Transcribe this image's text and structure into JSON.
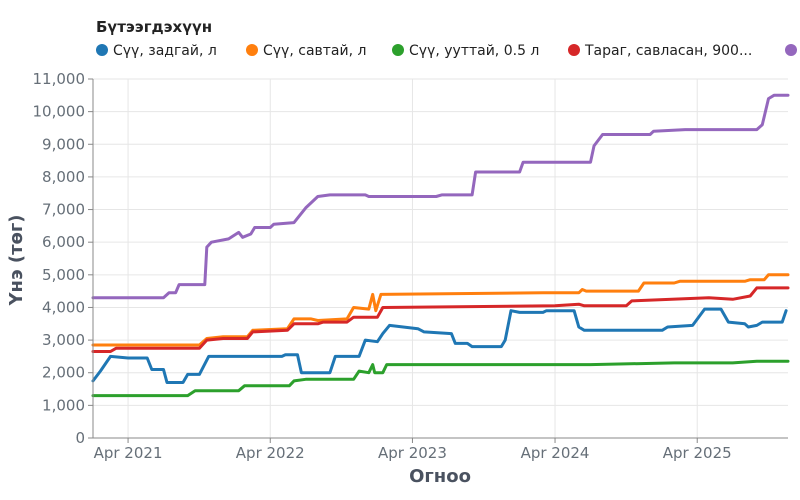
{
  "chart_data": {
    "type": "line",
    "legend": {
      "title": "Бүтээгдэхүүн",
      "placement": "top-left"
    },
    "xlabel": "Огноо",
    "ylabel": "Үнэ (төг)",
    "ylim": [
      0,
      11000
    ],
    "y_ticks": [
      "0",
      "1,000",
      "2,000",
      "3,000",
      "4,000",
      "5,000",
      "6,000",
      "7,000",
      "8,000",
      "9,000",
      "10,000",
      "11,000"
    ],
    "x_ticks": [
      "Apr 2021",
      "Apr 2022",
      "Apr 2023",
      "Apr 2024",
      "Apr 2025"
    ],
    "x_tick_dates": [
      "2021-04-01",
      "2022-04-01",
      "2023-04-01",
      "2024-04-01",
      "2025-04-01"
    ],
    "xlim": [
      "2021-01-01",
      "2025-11-20"
    ],
    "grid": true,
    "series": [
      {
        "name": "Сүү, задгай, л",
        "color": "#1f77b4",
        "points": [
          [
            "2021-01-01",
            1750
          ],
          [
            "2021-01-20",
            2050
          ],
          [
            "2021-02-15",
            2500
          ],
          [
            "2021-04-01",
            2450
          ],
          [
            "2021-05-20",
            2450
          ],
          [
            "2021-06-01",
            2100
          ],
          [
            "2021-07-01",
            2100
          ],
          [
            "2021-07-10",
            1700
          ],
          [
            "2021-08-20",
            1700
          ],
          [
            "2021-09-01",
            1950
          ],
          [
            "2021-10-01",
            1950
          ],
          [
            "2021-10-25",
            2500
          ],
          [
            "2022-05-01",
            2500
          ],
          [
            "2022-05-10",
            2550
          ],
          [
            "2022-06-10",
            2550
          ],
          [
            "2022-06-20",
            2000
          ],
          [
            "2022-09-01",
            2000
          ],
          [
            "2022-09-15",
            2500
          ],
          [
            "2022-11-15",
            2500
          ],
          [
            "2022-12-01",
            3000
          ],
          [
            "2023-01-01",
            2950
          ],
          [
            "2023-01-15",
            3200
          ],
          [
            "2023-02-01",
            3450
          ],
          [
            "2023-04-15",
            3350
          ],
          [
            "2023-05-01",
            3250
          ],
          [
            "2023-07-10",
            3200
          ],
          [
            "2023-07-20",
            2900
          ],
          [
            "2023-08-20",
            2900
          ],
          [
            "2023-09-01",
            2800
          ],
          [
            "2023-11-15",
            2800
          ],
          [
            "2023-11-25",
            3000
          ],
          [
            "2023-12-10",
            3900
          ],
          [
            "2024-01-01",
            3850
          ],
          [
            "2024-03-01",
            3850
          ],
          [
            "2024-03-10",
            3900
          ],
          [
            "2024-05-20",
            3900
          ],
          [
            "2024-06-01",
            3400
          ],
          [
            "2024-06-15",
            3300
          ],
          [
            "2025-01-01",
            3300
          ],
          [
            "2025-01-15",
            3400
          ],
          [
            "2025-03-20",
            3450
          ],
          [
            "2025-04-20",
            3950
          ],
          [
            "2025-06-01",
            3950
          ],
          [
            "2025-06-20",
            3550
          ],
          [
            "2025-08-01",
            3500
          ],
          [
            "2025-08-10",
            3400
          ],
          [
            "2025-09-01",
            3450
          ],
          [
            "2025-09-15",
            3550
          ],
          [
            "2025-11-05",
            3550
          ],
          [
            "2025-11-15",
            3900
          ]
        ]
      },
      {
        "name": "Сүү, савтай, л",
        "color": "#ff7f0e",
        "points": [
          [
            "2021-01-01",
            2850
          ],
          [
            "2021-10-01",
            2850
          ],
          [
            "2021-10-20",
            3050
          ],
          [
            "2021-12-01",
            3100
          ],
          [
            "2022-02-01",
            3100
          ],
          [
            "2022-02-15",
            3300
          ],
          [
            "2022-05-15",
            3350
          ],
          [
            "2022-06-01",
            3650
          ],
          [
            "2022-07-15",
            3650
          ],
          [
            "2022-08-01",
            3600
          ],
          [
            "2022-10-15",
            3650
          ],
          [
            "2022-11-01",
            4000
          ],
          [
            "2022-12-10",
            3950
          ],
          [
            "2022-12-20",
            4400
          ],
          [
            "2022-12-28",
            3900
          ],
          [
            "2023-01-10",
            4400
          ],
          [
            "2024-03-01",
            4450
          ],
          [
            "2024-06-01",
            4450
          ],
          [
            "2024-06-10",
            4550
          ],
          [
            "2024-06-20",
            4500
          ],
          [
            "2024-11-01",
            4500
          ],
          [
            "2024-11-15",
            4750
          ],
          [
            "2025-02-01",
            4750
          ],
          [
            "2025-02-15",
            4800
          ],
          [
            "2025-08-01",
            4800
          ],
          [
            "2025-08-15",
            4850
          ],
          [
            "2025-09-20",
            4850
          ],
          [
            "2025-10-01",
            5000
          ],
          [
            "2025-11-20",
            5000
          ]
        ]
      },
      {
        "name": "Сүү, ууттай, 0.5 л",
        "color": "#2ca02c",
        "points": [
          [
            "2021-01-01",
            1300
          ],
          [
            "2021-09-01",
            1300
          ],
          [
            "2021-09-20",
            1450
          ],
          [
            "2022-01-10",
            1450
          ],
          [
            "2022-01-25",
            1600
          ],
          [
            "2022-05-20",
            1600
          ],
          [
            "2022-06-01",
            1750
          ],
          [
            "2022-07-01",
            1800
          ],
          [
            "2022-11-01",
            1800
          ],
          [
            "2022-11-15",
            2050
          ],
          [
            "2022-12-10",
            2000
          ],
          [
            "2022-12-20",
            2250
          ],
          [
            "2022-12-25",
            2000
          ],
          [
            "2023-01-15",
            2000
          ],
          [
            "2023-01-25",
            2250
          ],
          [
            "2024-06-01",
            2250
          ],
          [
            "2024-07-01",
            2250
          ],
          [
            "2025-02-01",
            2300
          ],
          [
            "2025-07-01",
            2300
          ],
          [
            "2025-09-01",
            2350
          ],
          [
            "2025-11-20",
            2350
          ]
        ]
      },
      {
        "name": "Тараг, савласан, 900...",
        "color": "#d62728",
        "points": [
          [
            "2021-01-01",
            2650
          ],
          [
            "2021-02-15",
            2650
          ],
          [
            "2021-03-01",
            2750
          ],
          [
            "2021-10-01",
            2750
          ],
          [
            "2021-10-20",
            3000
          ],
          [
            "2021-12-01",
            3050
          ],
          [
            "2022-02-01",
            3050
          ],
          [
            "2022-02-15",
            3250
          ],
          [
            "2022-05-15",
            3300
          ],
          [
            "2022-06-01",
            3500
          ],
          [
            "2022-08-01",
            3500
          ],
          [
            "2022-08-15",
            3550
          ],
          [
            "2022-10-15",
            3550
          ],
          [
            "2022-11-01",
            3700
          ],
          [
            "2023-01-01",
            3700
          ],
          [
            "2023-01-15",
            4000
          ],
          [
            "2024-04-01",
            4050
          ],
          [
            "2024-06-01",
            4100
          ],
          [
            "2024-06-15",
            4050
          ],
          [
            "2024-10-01",
            4050
          ],
          [
            "2024-10-15",
            4200
          ],
          [
            "2025-05-01",
            4300
          ],
          [
            "2025-07-01",
            4250
          ],
          [
            "2025-08-15",
            4350
          ],
          [
            "2025-09-01",
            4600
          ],
          [
            "2025-11-20",
            4600
          ]
        ]
      },
      {
        "name": "",
        "color": "#9467bd",
        "points": [
          [
            "2021-01-01",
            4300
          ],
          [
            "2021-07-01",
            4300
          ],
          [
            "2021-07-15",
            4450
          ],
          [
            "2021-08-01",
            4450
          ],
          [
            "2021-08-10",
            4700
          ],
          [
            "2021-10-15",
            4700
          ],
          [
            "2021-10-20",
            5850
          ],
          [
            "2021-11-01",
            6000
          ],
          [
            "2021-12-15",
            6100
          ],
          [
            "2022-01-10",
            6300
          ],
          [
            "2022-01-20",
            6150
          ],
          [
            "2022-02-10",
            6250
          ],
          [
            "2022-02-20",
            6450
          ],
          [
            "2022-04-01",
            6450
          ],
          [
            "2022-04-10",
            6550
          ],
          [
            "2022-06-01",
            6600
          ],
          [
            "2022-07-01",
            7050
          ],
          [
            "2022-08-01",
            7400
          ],
          [
            "2022-09-01",
            7450
          ],
          [
            "2022-12-01",
            7450
          ],
          [
            "2022-12-10",
            7400
          ],
          [
            "2023-06-01",
            7400
          ],
          [
            "2023-06-15",
            7450
          ],
          [
            "2023-09-01",
            7450
          ],
          [
            "2023-09-10",
            8150
          ],
          [
            "2024-01-01",
            8150
          ],
          [
            "2024-01-10",
            8450
          ],
          [
            "2024-07-01",
            8450
          ],
          [
            "2024-07-10",
            8950
          ],
          [
            "2024-08-01",
            9300
          ],
          [
            "2024-12-01",
            9300
          ],
          [
            "2024-12-10",
            9400
          ],
          [
            "2025-03-01",
            9450
          ],
          [
            "2025-09-01",
            9450
          ],
          [
            "2025-09-15",
            9600
          ],
          [
            "2025-10-01",
            10400
          ],
          [
            "2025-10-15",
            10500
          ],
          [
            "2025-11-20",
            10500
          ]
        ]
      }
    ]
  }
}
